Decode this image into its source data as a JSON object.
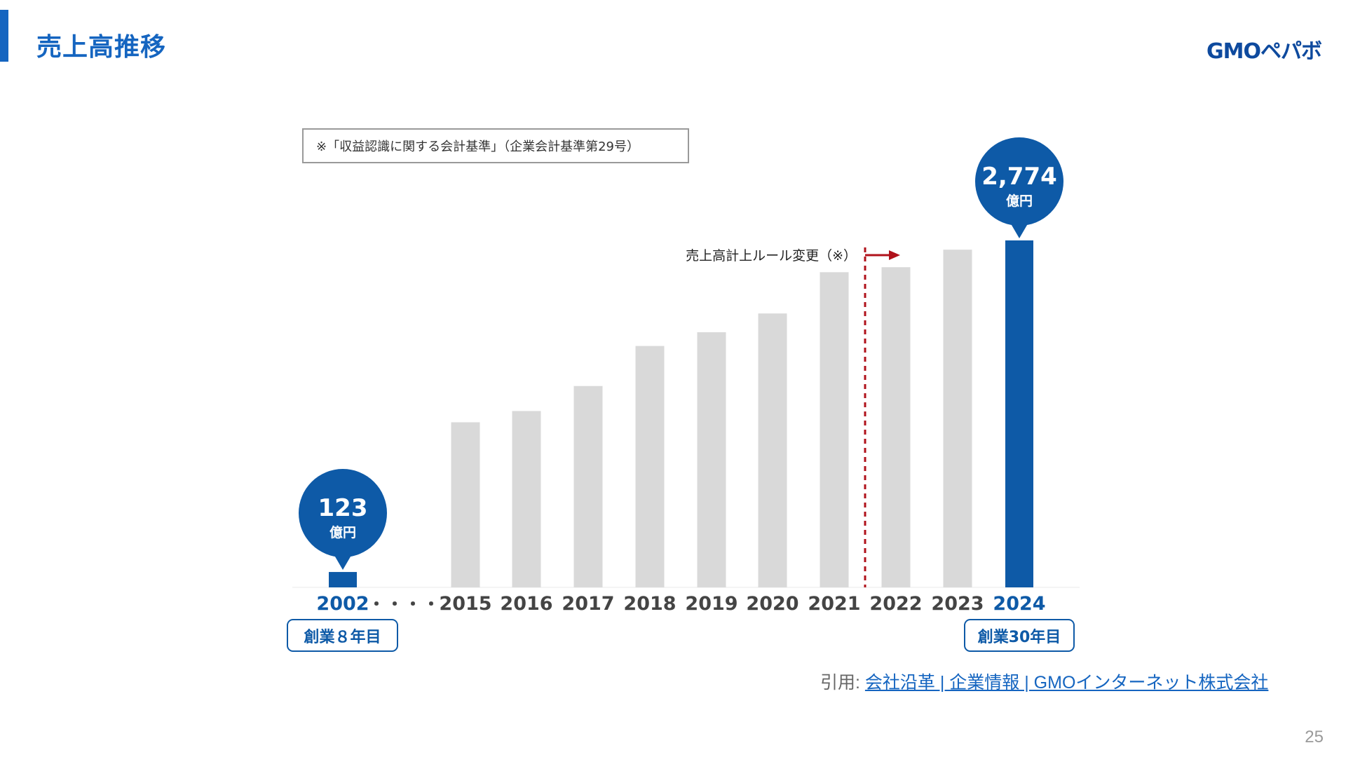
{
  "slide": {
    "title": "売上高推移",
    "logo": "GMOペパボ",
    "page_number": "25",
    "note": "※「収益認識に関する会計基準」（企業会計基準第29号）",
    "left_badge": "創業８年目",
    "right_badge": "創業30年目",
    "citation_prefix": "引用: ",
    "citation_link": "会社沿革 | 企業情報 | GMOインターネット株式会社"
  },
  "colors": {
    "accent": "#1565C0",
    "highlight_bar": "#0E5AA7",
    "grey_bar": "#D9D9D9",
    "marker_line": "#B0121B"
  },
  "chart_data": {
    "type": "bar",
    "categories": [
      "2002",
      "2015",
      "2016",
      "2017",
      "2018",
      "2019",
      "2020",
      "2021",
      "2022",
      "2023",
      "2024"
    ],
    "values": [
      123,
      1320,
      1410,
      1610,
      1930,
      2040,
      2190,
      2520,
      2560,
      2700,
      2774
    ],
    "highlighted": [
      "2002",
      "2024"
    ],
    "gap_marker": "・・・・",
    "unit": "億円",
    "callouts": [
      {
        "category": "2002",
        "value_label": "123",
        "unit_label": "億円"
      },
      {
        "category": "2024",
        "value_label": "2,774",
        "unit_label": "億円"
      }
    ],
    "annotation": {
      "text": "売上高計上ルール変更（※）",
      "between": [
        "2021",
        "2022"
      ]
    },
    "ylim": [
      0,
      2900
    ],
    "grid": false,
    "legend": "none"
  }
}
